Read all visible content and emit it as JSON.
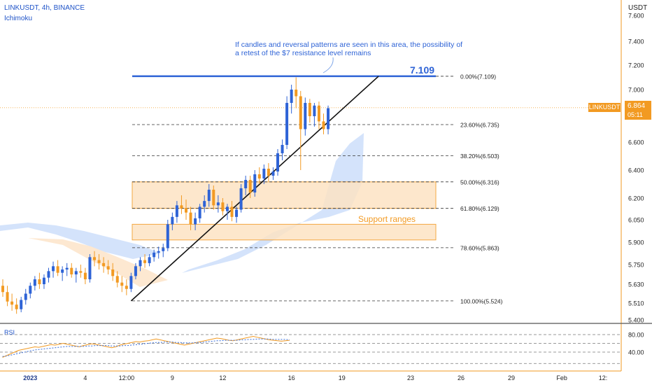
{
  "header": {
    "title": "LINKUSDT, 4h, BINANCE",
    "indicator": "Ichimoku",
    "currency": "USDT",
    "rsi_label": "RSI"
  },
  "annotations": {
    "note": "If candles and reversal patterns are seen in this area, the possibility of a retest of the $7 resistance level remains",
    "support": "Support ranges",
    "resistance_value": "7.109"
  },
  "price_tag": {
    "symbol": "LINKUSDT",
    "price": "6.864",
    "countdown": "05:11"
  },
  "colors": {
    "bull": "#2e63d6",
    "bear": "#f29a22",
    "axis": "#f29a22",
    "resistance": "#2e63d6",
    "support_fill": "#fde3c4",
    "cloud_bull": "#cfe0fb",
    "cloud_bear": "#fde6cc",
    "rsi": "#f29a22"
  },
  "chart_data": {
    "type": "candlestick",
    "symbol": "LINKUSDT",
    "timeframe": "4h",
    "exchange": "BINANCE",
    "y_ticks": [
      7.6,
      7.4,
      7.2,
      7.0,
      6.8,
      6.6,
      6.4,
      6.2,
      6.05,
      5.9,
      5.75,
      5.63,
      5.51,
      5.4
    ],
    "y_tick_labels": [
      "7.600",
      "7.400",
      "7.200",
      "7.000",
      "6.800",
      "6.600",
      "6.400",
      "6.200",
      "6.050",
      "5.900",
      "5.750",
      "5.630",
      "5.510",
      "5.400"
    ],
    "x_labels": [
      {
        "label": "2023",
        "bar": 6
      },
      {
        "label": "4",
        "bar": 18
      },
      {
        "label": "12:00",
        "bar": 27
      },
      {
        "label": "9",
        "bar": 37
      },
      {
        "label": "12",
        "bar": 48
      },
      {
        "label": "16",
        "bar": 63
      },
      {
        "label": "19",
        "bar": 74
      },
      {
        "label": "23",
        "bar": 89
      },
      {
        "label": "26",
        "bar": 100
      },
      {
        "label": "29",
        "bar": 111
      },
      {
        "label": "Feb",
        "bar": 122
      },
      {
        "label": "12:",
        "bar": 131
      }
    ],
    "fibonacci": [
      {
        "label": "0.00%(7.109)",
        "value": 7.109
      },
      {
        "label": "23.60%(6.735)",
        "value": 6.735
      },
      {
        "label": "38.20%(6.503)",
        "value": 6.503
      },
      {
        "label": "50.00%(6.316)",
        "value": 6.316
      },
      {
        "label": "61.80%(6.129)",
        "value": 6.129
      },
      {
        "label": "78.60%(5.863)",
        "value": 5.863
      },
      {
        "label": "100.00%(5.524)",
        "value": 5.524
      }
    ],
    "resistance_level": 7.109,
    "current_price": 6.864,
    "support_zones": [
      {
        "top": 6.316,
        "bottom": 6.129
      },
      {
        "top": 6.02,
        "bottom": 5.915
      }
    ],
    "trendline": {
      "from": {
        "bar": 28,
        "price": 5.524
      },
      "to": {
        "bar": 82,
        "price": 7.109
      }
    },
    "candles": [
      [
        5.62,
        5.66,
        5.55,
        5.58
      ],
      [
        5.58,
        5.62,
        5.49,
        5.52
      ],
      [
        5.52,
        5.57,
        5.46,
        5.5
      ],
      [
        5.5,
        5.54,
        5.44,
        5.47
      ],
      [
        5.47,
        5.55,
        5.45,
        5.53
      ],
      [
        5.53,
        5.6,
        5.5,
        5.57
      ],
      [
        5.57,
        5.64,
        5.54,
        5.62
      ],
      [
        5.62,
        5.68,
        5.59,
        5.66
      ],
      [
        5.66,
        5.7,
        5.6,
        5.63
      ],
      [
        5.63,
        5.69,
        5.6,
        5.67
      ],
      [
        5.67,
        5.73,
        5.64,
        5.71
      ],
      [
        5.71,
        5.77,
        5.67,
        5.74
      ],
      [
        5.74,
        5.78,
        5.68,
        5.7
      ],
      [
        5.7,
        5.74,
        5.65,
        5.72
      ],
      [
        5.72,
        5.76,
        5.68,
        5.73
      ],
      [
        5.73,
        5.76,
        5.67,
        5.69
      ],
      [
        5.69,
        5.73,
        5.64,
        5.71
      ],
      [
        5.71,
        5.75,
        5.67,
        5.7
      ],
      [
        5.7,
        5.73,
        5.63,
        5.66
      ],
      [
        5.66,
        5.82,
        5.64,
        5.8
      ],
      [
        5.8,
        5.84,
        5.74,
        5.78
      ],
      [
        5.78,
        5.82,
        5.72,
        5.76
      ],
      [
        5.76,
        5.8,
        5.7,
        5.74
      ],
      [
        5.74,
        5.78,
        5.69,
        5.72
      ],
      [
        5.72,
        5.76,
        5.65,
        5.68
      ],
      [
        5.68,
        5.71,
        5.61,
        5.64
      ],
      [
        5.64,
        5.68,
        5.58,
        5.62
      ],
      [
        5.62,
        5.66,
        5.56,
        5.6
      ],
      [
        5.6,
        5.7,
        5.58,
        5.68
      ],
      [
        5.68,
        5.76,
        5.66,
        5.74
      ],
      [
        5.74,
        5.8,
        5.71,
        5.78
      ],
      [
        5.78,
        5.82,
        5.73,
        5.76
      ],
      [
        5.76,
        5.82,
        5.74,
        5.8
      ],
      [
        5.8,
        5.85,
        5.77,
        5.83
      ],
      [
        5.83,
        5.87,
        5.79,
        5.84
      ],
      [
        5.84,
        5.89,
        5.8,
        5.86
      ],
      [
        5.86,
        6.05,
        5.84,
        6.02
      ],
      [
        6.02,
        6.1,
        5.98,
        6.07
      ],
      [
        6.07,
        6.18,
        6.03,
        6.15
      ],
      [
        6.15,
        6.22,
        6.09,
        6.13
      ],
      [
        6.13,
        6.19,
        6.05,
        6.1
      ],
      [
        6.1,
        6.14,
        5.98,
        6.02
      ],
      [
        6.02,
        6.1,
        5.98,
        6.06
      ],
      [
        6.06,
        6.16,
        6.03,
        6.14
      ],
      [
        6.14,
        6.22,
        6.1,
        6.18
      ],
      [
        6.18,
        6.3,
        6.14,
        6.26
      ],
      [
        6.26,
        6.29,
        6.12,
        6.15
      ],
      [
        6.15,
        6.22,
        6.1,
        6.17
      ],
      [
        6.17,
        6.2,
        6.08,
        6.11
      ],
      [
        6.11,
        6.16,
        6.05,
        6.14
      ],
      [
        6.14,
        6.18,
        6.04,
        6.07
      ],
      [
        6.07,
        6.14,
        6.03,
        6.12
      ],
      [
        6.12,
        6.3,
        6.1,
        6.27
      ],
      [
        6.27,
        6.36,
        6.22,
        6.33
      ],
      [
        6.33,
        6.36,
        6.2,
        6.24
      ],
      [
        6.24,
        6.4,
        6.21,
        6.37
      ],
      [
        6.37,
        6.42,
        6.3,
        6.34
      ],
      [
        6.34,
        6.44,
        6.3,
        6.41
      ],
      [
        6.41,
        6.45,
        6.32,
        6.36
      ],
      [
        6.36,
        6.42,
        6.33,
        6.39
      ],
      [
        6.39,
        6.55,
        6.36,
        6.52
      ],
      [
        6.52,
        6.62,
        6.47,
        6.58
      ],
      [
        6.58,
        6.95,
        6.55,
        6.9
      ],
      [
        6.9,
        7.04,
        6.82,
        7.0
      ],
      [
        7.0,
        7.1,
        6.86,
        6.95
      ],
      [
        6.95,
        6.99,
        6.4,
        6.7
      ],
      [
        6.7,
        6.94,
        6.65,
        6.9
      ],
      [
        6.9,
        6.93,
        6.75,
        6.8
      ],
      [
        6.8,
        6.9,
        6.72,
        6.88
      ],
      [
        6.88,
        6.91,
        6.7,
        6.76
      ],
      [
        6.76,
        6.82,
        6.66,
        6.7
      ],
      [
        6.7,
        6.88,
        6.66,
        6.86
      ]
    ],
    "rsi": {
      "label": "RSI",
      "ticks": [
        80.0,
        40.0
      ],
      "values": [
        28,
        32,
        36,
        40,
        44,
        46,
        48,
        50,
        52,
        51,
        53,
        55,
        57,
        56,
        58,
        60,
        58,
        56,
        54,
        52,
        55,
        57,
        59,
        58,
        56,
        54,
        52,
        50,
        52,
        56,
        58,
        60,
        62,
        64,
        63,
        65,
        66,
        68,
        70,
        68,
        66,
        64,
        62,
        60,
        58,
        56,
        58,
        60,
        62,
        64,
        66,
        68,
        70,
        72,
        71,
        69,
        67,
        66,
        68,
        70,
        72,
        74,
        76,
        74,
        72,
        70,
        68,
        67,
        66,
        65,
        66,
        67
      ],
      "signal": [
        30,
        31,
        33,
        35,
        37,
        39,
        41,
        43,
        45,
        46,
        47,
        48,
        49,
        50,
        51,
        52,
        53,
        53,
        53,
        53,
        53,
        54,
        54,
        55,
        55,
        55,
        55,
        54,
        54,
        54,
        55,
        55,
        56,
        57,
        58,
        59,
        60,
        61,
        62,
        62,
        63,
        63,
        63,
        62,
        62,
        61,
        61,
        61,
        62,
        62,
        63,
        64,
        65,
        66,
        66,
        67,
        67,
        67,
        67,
        68,
        68,
        69,
        69,
        70,
        70,
        70,
        70,
        69,
        69,
        69,
        69,
        68
      ]
    }
  }
}
